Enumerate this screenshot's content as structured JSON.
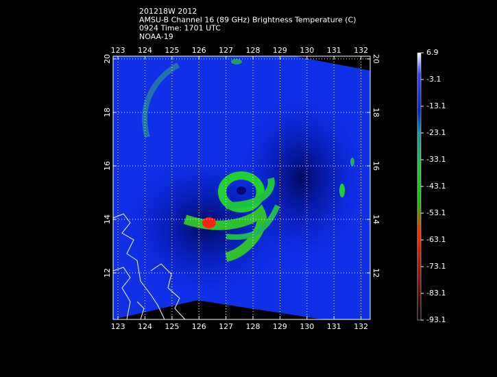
{
  "header": {
    "lines": [
      "201218W 2012",
      "AMSU-B Channel 16 (89 GHz) Brightness Temperature (C)",
      "0924 Time: 1701 UTC",
      "NOAA-19"
    ]
  },
  "map": {
    "lon_range": [
      122.82,
      132.34
    ],
    "lon_ticks": [
      123,
      124,
      125,
      126,
      127,
      128,
      129,
      130,
      131,
      132
    ],
    "lat_range": [
      10.26,
      20.1
    ],
    "lat_ticks": [
      12,
      14,
      16,
      18,
      20
    ]
  },
  "colorbar": {
    "lim": [
      -93.1,
      6.9
    ],
    "ticks": [
      6.9,
      -3.1,
      -13.1,
      -23.1,
      -33.1,
      -43.1,
      -53.1,
      -63.1,
      -73.1,
      -83.1,
      -93.1
    ]
  }
}
